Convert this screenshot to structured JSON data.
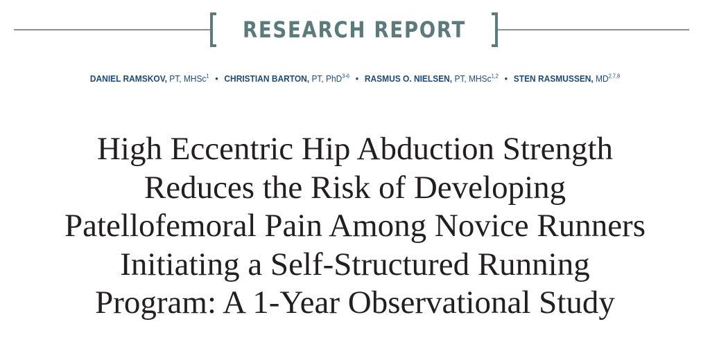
{
  "header": {
    "section_label": "RESEARCH REPORT",
    "accent_color": "#5b7a7b"
  },
  "authors": [
    {
      "name": "DANIEL RAMSKOV,",
      "credentials": "PT, MHSc",
      "affiliations": "1"
    },
    {
      "name": "CHRISTIAN BARTON,",
      "credentials": "PT, PhD",
      "affiliations": "3-6"
    },
    {
      "name": "RASMUS O. NIELSEN,",
      "credentials": "PT, MHSc",
      "affiliations": "1,2"
    },
    {
      "name": "STEN RASMUSSEN,",
      "credentials": "MD",
      "affiliations": "2,7,8"
    }
  ],
  "author_separator": "•",
  "author_color": "#1c4a78",
  "title_lines": [
    "High Eccentric Hip Abduction Strength",
    "Reduces the Risk of Developing",
    "Patellofemoral Pain Among Novice Runners",
    "Initiating a Self-Structured Running",
    "Program: A 1-Year Observational Study"
  ]
}
